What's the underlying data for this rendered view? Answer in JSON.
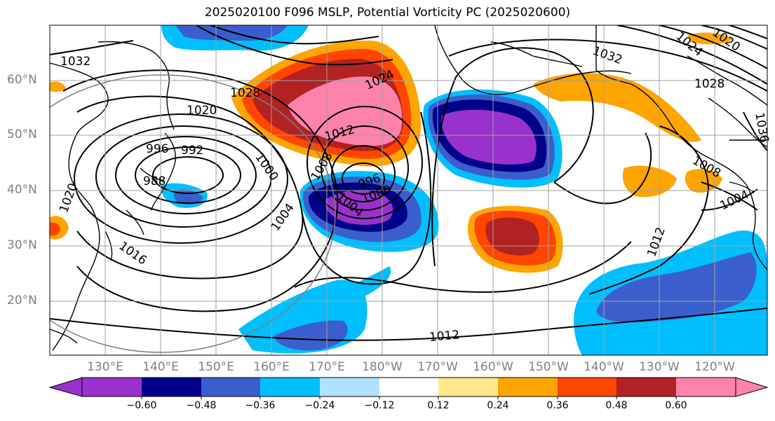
{
  "title": "2025020100 F096 MSLP, Potential Vorticity PC (2025020600)",
  "lat_labels": [
    "60°N",
    "50°N",
    "40°N",
    "30°N",
    "20°N"
  ],
  "lon_labels": [
    "130°E",
    "140°E",
    "150°E",
    "160°E",
    "170°E",
    "180°W",
    "170°W",
    "160°W",
    "150°W",
    "140°W",
    "130°W",
    "120°W"
  ],
  "isobar_labels": [
    {
      "text": "1032"
    },
    {
      "text": "1028"
    },
    {
      "text": "1024"
    },
    {
      "text": "1020"
    },
    {
      "text": "1012"
    },
    {
      "text": "1008"
    },
    {
      "text": "996"
    },
    {
      "text": "992"
    },
    {
      "text": "988"
    },
    {
      "text": "1000"
    },
    {
      "text": "1004"
    },
    {
      "text": "1016"
    },
    {
      "text": "1020"
    },
    {
      "text": "1004"
    },
    {
      "text": "1000"
    },
    {
      "text": "996"
    },
    {
      "text": "1012"
    },
    {
      "text": "1012"
    },
    {
      "text": "1032"
    },
    {
      "text": "1024"
    },
    {
      "text": "1028"
    },
    {
      "text": "1036"
    },
    {
      "text": "1008"
    },
    {
      "text": "1004"
    },
    {
      "text": "1020"
    }
  ],
  "colorbar": {
    "ticks": [
      "−0.60",
      "−0.48",
      "−0.36",
      "−0.24",
      "−0.12",
      "0.12",
      "0.24",
      "0.36",
      "0.48",
      "0.60"
    ],
    "colors": [
      "#9932cc",
      "#00008b",
      "#3a5fcd",
      "#00bfff",
      "#b0e2ff",
      "#ffffff",
      "#ffe98a",
      "#ffa500",
      "#ff4500",
      "#b22222",
      "#ff82ab"
    ]
  },
  "palette": {
    "land": "#000000",
    "grid": "#a0a0a0",
    "isobar": "#000000"
  }
}
